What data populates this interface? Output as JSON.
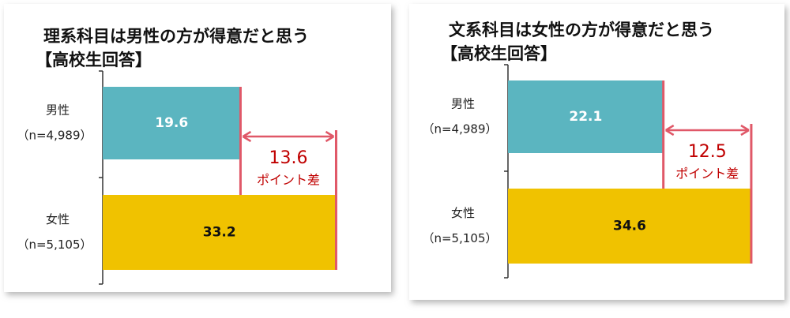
{
  "chart_data": [
    {
      "type": "bar",
      "orientation": "horizontal",
      "title": "理系科目は男性の方が得意だと思う",
      "subtitle": "【高校生回答】",
      "categories": [
        "男性",
        "女性"
      ],
      "category_notes": [
        "（n=4,989）",
        "（n=5,105）"
      ],
      "values": [
        19.6,
        33.2
      ],
      "colors": [
        "#5bb5c0",
        "#f0c200"
      ],
      "xlim": [
        0,
        40
      ],
      "difference": 13.6,
      "difference_label": "ポイント差"
    },
    {
      "type": "bar",
      "orientation": "horizontal",
      "title": "文系科目は女性の方が得意だと思う",
      "subtitle": "【高校生回答】",
      "categories": [
        "男性",
        "女性"
      ],
      "category_notes": [
        "（n=4,989）",
        "（n=5,105）"
      ],
      "values": [
        22.1,
        34.6
      ],
      "colors": [
        "#5bb5c0",
        "#f0c200"
      ],
      "xlim": [
        0,
        40
      ],
      "difference": 12.5,
      "difference_label": "ポイント差"
    }
  ]
}
